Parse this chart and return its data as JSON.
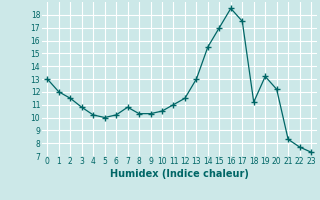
{
  "x": [
    0,
    1,
    2,
    3,
    4,
    5,
    6,
    7,
    8,
    9,
    10,
    11,
    12,
    13,
    14,
    15,
    16,
    17,
    18,
    19,
    20,
    21,
    22,
    23
  ],
  "y": [
    13,
    12,
    11.5,
    10.8,
    10.2,
    10.0,
    10.2,
    10.8,
    10.3,
    10.3,
    10.5,
    11.0,
    11.5,
    13.0,
    15.5,
    17.0,
    18.5,
    17.5,
    11.2,
    13.2,
    12.2,
    8.3,
    7.7,
    7.3
  ],
  "line_color": "#006666",
  "marker": "+",
  "marker_size": 4,
  "bg_color": "#cce8e8",
  "grid_color": "#ffffff",
  "xlabel": "Humidex (Indice chaleur)",
  "ylim": [
    7,
    19
  ],
  "xlim": [
    -0.5,
    23.5
  ],
  "yticks": [
    7,
    8,
    9,
    10,
    11,
    12,
    13,
    14,
    15,
    16,
    17,
    18
  ],
  "xticks": [
    0,
    1,
    2,
    3,
    4,
    5,
    6,
    7,
    8,
    9,
    10,
    11,
    12,
    13,
    14,
    15,
    16,
    17,
    18,
    19,
    20,
    21,
    22,
    23
  ],
  "tick_fontsize": 5.5,
  "xlabel_fontsize": 7
}
